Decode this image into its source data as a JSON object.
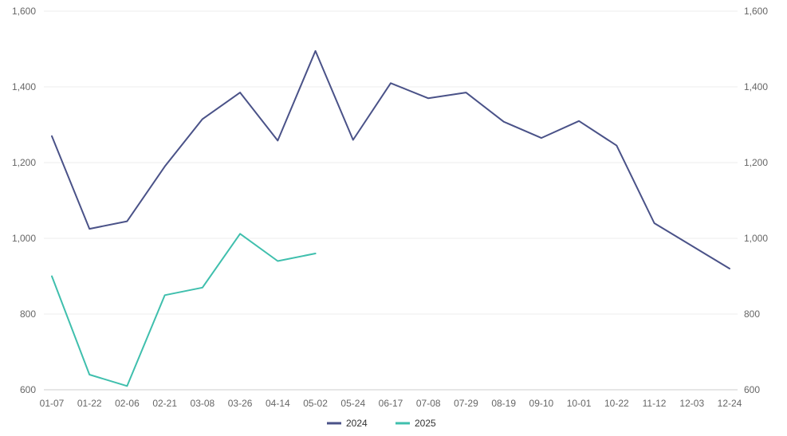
{
  "chart_data": {
    "type": "line",
    "title": "",
    "xlabel": "",
    "ylabel": "",
    "grid": true,
    "legend_position": "bottom-center",
    "ylim": [
      600,
      1600
    ],
    "y_ticks": [
      "600",
      "800",
      "1,000",
      "1,200",
      "1,400",
      "1,600"
    ],
    "y_tick_values": [
      600,
      800,
      1000,
      1200,
      1400,
      1600
    ],
    "categories": [
      "01-07",
      "01-22",
      "02-06",
      "02-21",
      "03-08",
      "03-26",
      "04-14",
      "05-02",
      "05-24",
      "06-17",
      "07-08",
      "07-29",
      "08-19",
      "09-10",
      "10-01",
      "10-22",
      "11-12",
      "12-03",
      "12-24"
    ],
    "series": [
      {
        "name": "2024",
        "color": "#4a5288",
        "values": [
          1270,
          1025,
          1045,
          1190,
          1315,
          1385,
          1258,
          1495,
          1260,
          1410,
          1370,
          1385,
          1308,
          1265,
          1310,
          1245,
          1040,
          980,
          920
        ]
      },
      {
        "name": "2025",
        "color": "#3fbfad",
        "values": [
          900,
          640,
          610,
          850,
          870,
          1012,
          940,
          960,
          null,
          null,
          null,
          null,
          null,
          null,
          null,
          null,
          null,
          null,
          null
        ]
      }
    ]
  }
}
